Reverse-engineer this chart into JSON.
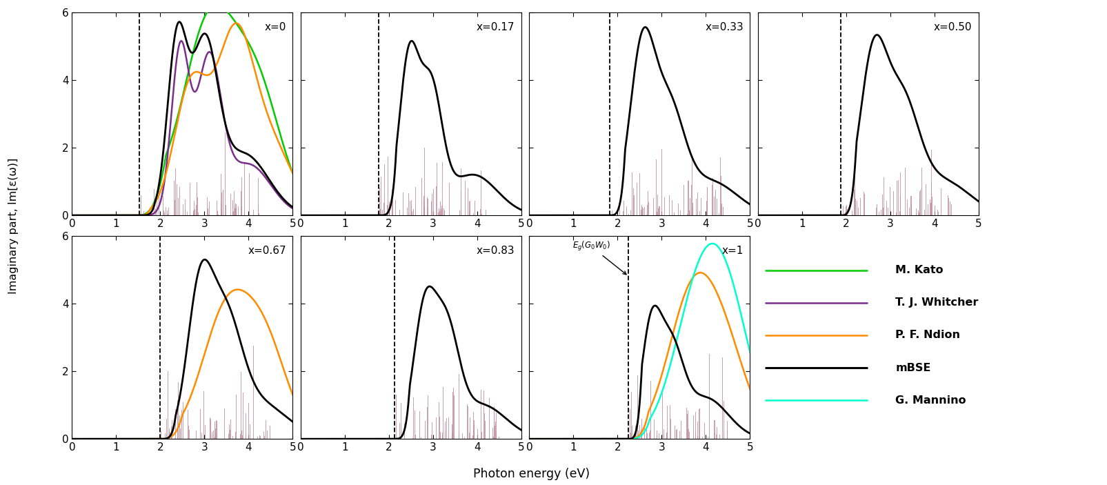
{
  "panels": [
    {
      "label": "x=0",
      "dashed_x": 1.53
    },
    {
      "label": "x=0.17",
      "dashed_x": 1.77
    },
    {
      "label": "x=0.33",
      "dashed_x": 1.82
    },
    {
      "label": "x=0.50",
      "dashed_x": 1.88
    },
    {
      "label": "x=0.67",
      "dashed_x": 2.0
    },
    {
      "label": "x=0.83",
      "dashed_x": 2.12
    },
    {
      "label": "x=1",
      "dashed_x": 2.25
    }
  ],
  "ylim": [
    0,
    6
  ],
  "xlim": [
    0,
    5
  ],
  "yticks": [
    0,
    2,
    4,
    6
  ],
  "xticks": [
    0,
    1,
    2,
    3,
    4,
    5
  ],
  "ylabel": "Imaginary part, Im[ε(ω)]",
  "xlabel": "Photon energy (eV)",
  "legend_entries": [
    {
      "label": "M. Kato",
      "color": "#00cc00"
    },
    {
      "label": "T. J. Whitcher",
      "color": "#7b2d8b"
    },
    {
      "label": "P. F. Ndion",
      "color": "#ff8c00"
    },
    {
      "label": "mBSE",
      "color": "#000000"
    },
    {
      "label": "G. Mannino",
      "color": "#00ffcc"
    }
  ],
  "stick_color": "#c090a0",
  "background": "#ffffff"
}
